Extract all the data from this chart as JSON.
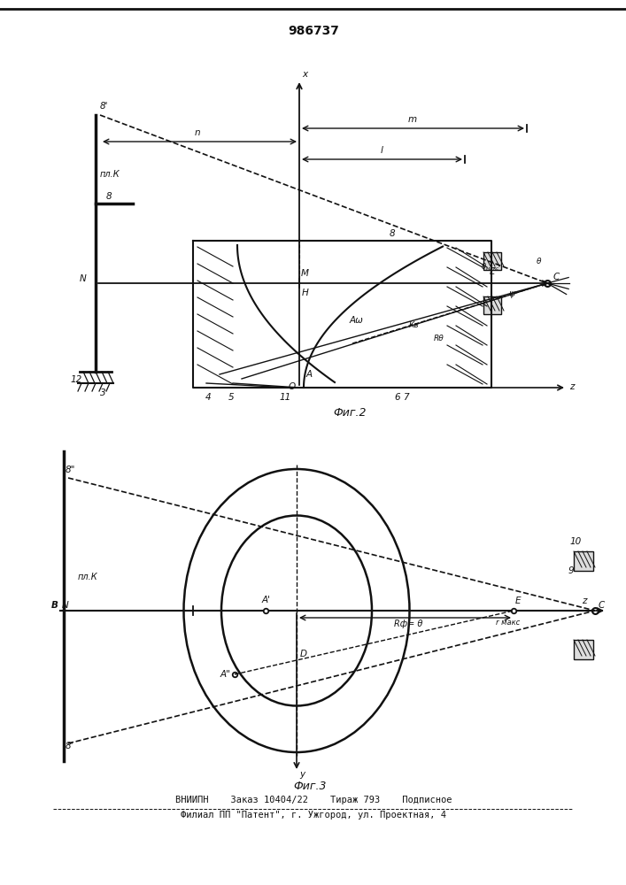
{
  "title": "986737",
  "title_fontsize": 10,
  "fig_width": 7.07,
  "fig_height": 10.0,
  "lc": "#111111",
  "footer_line1": "ВНИИПН    Заказ 10404/22    Тираж 793    Подписное",
  "footer_line2": "Филиал ПП \"Патент\", г. Ужгород, ул. Проектная, 4",
  "fig2_caption": "Фиг.2",
  "fig3_caption": "Фиг.3"
}
